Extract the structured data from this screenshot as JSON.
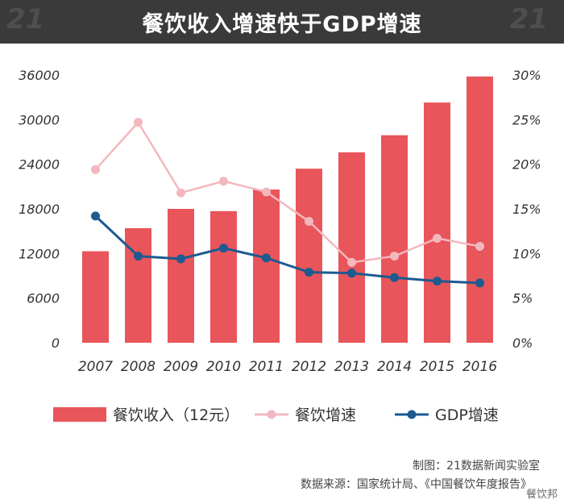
{
  "title": "餐饮收入增速快于GDP增速",
  "watermark": "21",
  "colors": {
    "bar": "#e8555a",
    "restaurant_growth": "#f2b8bd",
    "gdp_growth": "#1c5a90",
    "title_bg": "#3a3a3a"
  },
  "legend": {
    "bar_label": "餐饮收入（12元）",
    "restaurant_label": "餐饮增速",
    "gdp_label": "GDP增速"
  },
  "footer": {
    "credit": "制图：21数据新闻实验室",
    "source": "数据来源：国家统计局、《中国餐饮年度报告》",
    "logo": "餐饮邦"
  },
  "chart_data": {
    "type": "bar",
    "categories": [
      "2007",
      "2008",
      "2009",
      "2010",
      "2011",
      "2012",
      "2013",
      "2014",
      "2015",
      "2016"
    ],
    "series": [
      {
        "name": "餐饮收入（12元）",
        "type": "bar",
        "axis": "left",
        "values": [
          12300,
          15400,
          18000,
          17700,
          20600,
          23400,
          25600,
          27900,
          32300,
          35800
        ]
      },
      {
        "name": "餐饮增速",
        "type": "line",
        "axis": "right",
        "values": [
          19.4,
          24.7,
          16.8,
          18.1,
          16.9,
          13.6,
          9.0,
          9.7,
          11.7,
          10.8
        ]
      },
      {
        "name": "GDP增速",
        "type": "line",
        "axis": "right",
        "values": [
          14.2,
          9.7,
          9.4,
          10.6,
          9.5,
          7.9,
          7.8,
          7.3,
          6.9,
          6.7
        ]
      }
    ],
    "y_left": {
      "ticks": [
        "0",
        "6000",
        "12000",
        "18000",
        "24000",
        "30000",
        "36000"
      ],
      "range": [
        0,
        36000
      ]
    },
    "y_right": {
      "ticks": [
        "0%",
        "5%",
        "10%",
        "15%",
        "20%",
        "25%",
        "30%"
      ],
      "range": [
        0,
        30
      ]
    },
    "grid": false,
    "legend_position": "bottom"
  }
}
